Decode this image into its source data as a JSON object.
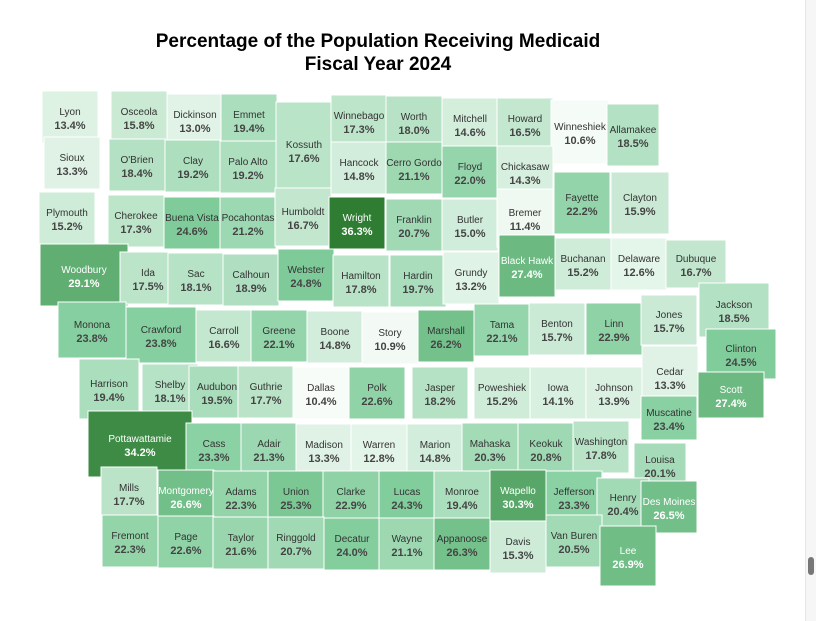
{
  "title_line1": "Percentage of the Population Receiving Medicaid",
  "title_line2": "Fiscal Year 2024",
  "color_scale": {
    "min": 10.4,
    "max": 36.3,
    "low": "#f7fcf8",
    "mid": "#7fcc9a",
    "high": "#2f7d32"
  },
  "counties": [
    {
      "name": "Lyon",
      "value": 13.4,
      "col": 0,
      "row": 0
    },
    {
      "name": "Osceola",
      "value": 15.8,
      "col": 1,
      "row": 0
    },
    {
      "name": "Dickinson",
      "value": 13.0,
      "col": 2,
      "row": 0
    },
    {
      "name": "Emmet",
      "value": 19.4,
      "col": 3,
      "row": 0
    },
    {
      "name": "Kossuth",
      "value": 17.6,
      "col": 4,
      "row": 0.5
    },
    {
      "name": "Winnebago",
      "value": 17.3,
      "col": 5,
      "row": 0
    },
    {
      "name": "Worth",
      "value": 18.0,
      "col": 6,
      "row": 0
    },
    {
      "name": "Mitchell",
      "value": 14.6,
      "col": 7,
      "row": 0
    },
    {
      "name": "Howard",
      "value": 16.5,
      "col": 8,
      "row": 0
    },
    {
      "name": "Winneshiek",
      "value": 10.6,
      "col": 9,
      "row": 0.3
    },
    {
      "name": "Allamakee",
      "value": 18.5,
      "col": 10,
      "row": 0.2
    },
    {
      "name": "Sioux",
      "value": 13.3,
      "col": 0,
      "row": 1
    },
    {
      "name": "O'Brien",
      "value": 18.4,
      "col": 1,
      "row": 1
    },
    {
      "name": "Clay",
      "value": 19.2,
      "col": 2,
      "row": 1
    },
    {
      "name": "Palo Alto",
      "value": 19.2,
      "col": 3,
      "row": 1
    },
    {
      "name": "Hancock",
      "value": 14.8,
      "col": 5,
      "row": 1
    },
    {
      "name": "Cerro Gordo",
      "value": 21.1,
      "col": 6,
      "row": 1
    },
    {
      "name": "Floyd",
      "value": 22.0,
      "col": 7,
      "row": 1
    },
    {
      "name": "Chickasaw",
      "value": 14.3,
      "col": 8,
      "row": 1
    },
    {
      "name": "Fayette",
      "value": 22.2,
      "col": 9,
      "row": 1.6
    },
    {
      "name": "Clayton",
      "value": 15.9,
      "col": 10,
      "row": 1.6
    },
    {
      "name": "Plymouth",
      "value": 15.2,
      "col": 0,
      "row": 2
    },
    {
      "name": "Cherokee",
      "value": 17.3,
      "col": 1,
      "row": 2
    },
    {
      "name": "Buena Vista",
      "value": 24.6,
      "col": 2,
      "row": 2
    },
    {
      "name": "Pocahontas",
      "value": 21.2,
      "col": 3,
      "row": 2
    },
    {
      "name": "Humboldt",
      "value": 16.7,
      "col": 4,
      "row": 1.9
    },
    {
      "name": "Wright",
      "value": 36.3,
      "col": 5,
      "row": 2
    },
    {
      "name": "Franklin",
      "value": 20.7,
      "col": 6,
      "row": 2
    },
    {
      "name": "Butler",
      "value": 15.0,
      "col": 7,
      "row": 2
    },
    {
      "name": "Bremer",
      "value": 11.4,
      "col": 8,
      "row": 2
    },
    {
      "name": "Woodbury",
      "value": 29.1,
      "col": 0,
      "row": 3
    },
    {
      "name": "Ida",
      "value": 17.5,
      "col": 1,
      "row": 3
    },
    {
      "name": "Sac",
      "value": 18.1,
      "col": 2,
      "row": 3
    },
    {
      "name": "Calhoun",
      "value": 18.9,
      "col": 3,
      "row": 3
    },
    {
      "name": "Webster",
      "value": 24.8,
      "col": 4,
      "row": 3
    },
    {
      "name": "Hamilton",
      "value": 17.8,
      "col": 5,
      "row": 3
    },
    {
      "name": "Hardin",
      "value": 19.7,
      "col": 6,
      "row": 3
    },
    {
      "name": "Grundy",
      "value": 13.2,
      "col": 7,
      "row": 3
    },
    {
      "name": "Black Hawk",
      "value": 27.4,
      "col": 8,
      "row": 2.9
    },
    {
      "name": "Buchanan",
      "value": 15.2,
      "col": 9,
      "row": 3
    },
    {
      "name": "Delaware",
      "value": 12.6,
      "col": 10,
      "row": 3
    },
    {
      "name": "Dubuque",
      "value": 16.7,
      "col": 11,
      "row": 3
    },
    {
      "name": "Monona",
      "value": 23.8,
      "col": 0,
      "row": 4
    },
    {
      "name": "Crawford",
      "value": 23.8,
      "col": 1,
      "row": 4
    },
    {
      "name": "Carroll",
      "value": 16.6,
      "col": 2,
      "row": 4
    },
    {
      "name": "Greene",
      "value": 22.1,
      "col": 3,
      "row": 4
    },
    {
      "name": "Boone",
      "value": 14.8,
      "col": 4,
      "row": 4
    },
    {
      "name": "Story",
      "value": 10.9,
      "col": 5,
      "row": 4
    },
    {
      "name": "Marshall",
      "value": 26.2,
      "col": 6,
      "row": 4
    },
    {
      "name": "Tama",
      "value": 22.1,
      "col": 7,
      "row": 4
    },
    {
      "name": "Benton",
      "value": 15.7,
      "col": 8,
      "row": 4
    },
    {
      "name": "Linn",
      "value": 22.9,
      "col": 9,
      "row": 4
    },
    {
      "name": "Jones",
      "value": 15.7,
      "col": 10,
      "row": 3.8
    },
    {
      "name": "Jackson",
      "value": 18.5,
      "col": 11,
      "row": 3.8
    },
    {
      "name": "Harrison",
      "value": 19.4,
      "col": 0,
      "row": 5
    },
    {
      "name": "Shelby",
      "value": 18.1,
      "col": 1,
      "row": 5
    },
    {
      "name": "Audubon",
      "value": 19.5,
      "col": 2,
      "row": 5
    },
    {
      "name": "Guthrie",
      "value": 17.7,
      "col": 3,
      "row": 5
    },
    {
      "name": "Dallas",
      "value": 10.4,
      "col": 4,
      "row": 5
    },
    {
      "name": "Polk",
      "value": 22.6,
      "col": 5,
      "row": 5
    },
    {
      "name": "Jasper",
      "value": 18.2,
      "col": 6,
      "row": 5
    },
    {
      "name": "Poweshiek",
      "value": 15.2,
      "col": 7,
      "row": 5
    },
    {
      "name": "Iowa",
      "value": 14.1,
      "col": 8,
      "row": 5
    },
    {
      "name": "Johnson",
      "value": 13.9,
      "col": 9,
      "row": 5
    },
    {
      "name": "Cedar",
      "value": 13.3,
      "col": 10,
      "row": 4.8
    },
    {
      "name": "Clinton",
      "value": 24.5,
      "col": 11,
      "row": 4.6
    },
    {
      "name": "Scott",
      "value": 27.4,
      "col": 11,
      "row": 5.4
    },
    {
      "name": "Pottawattamie",
      "value": 34.2,
      "col": 0,
      "row": 6
    },
    {
      "name": "Cass",
      "value": 23.3,
      "col": 1,
      "row": 6
    },
    {
      "name": "Adair",
      "value": 21.3,
      "col": 2,
      "row": 6
    },
    {
      "name": "Madison",
      "value": 13.3,
      "col": 3,
      "row": 6
    },
    {
      "name": "Warren",
      "value": 12.8,
      "col": 4,
      "row": 6
    },
    {
      "name": "Marion",
      "value": 14.8,
      "col": 5,
      "row": 6
    },
    {
      "name": "Mahaska",
      "value": 20.3,
      "col": 6,
      "row": 6
    },
    {
      "name": "Keokuk",
      "value": 20.8,
      "col": 7,
      "row": 6
    },
    {
      "name": "Washington",
      "value": 17.8,
      "col": 8,
      "row": 6
    },
    {
      "name": "Muscatine",
      "value": 23.4,
      "col": 9,
      "row": 5.7
    },
    {
      "name": "Louisa",
      "value": 20.1,
      "col": 9,
      "row": 6.5
    },
    {
      "name": "Mills",
      "value": 17.7,
      "col": 0,
      "row": 7
    },
    {
      "name": "Montgomery",
      "value": 26.6,
      "col": 1,
      "row": 7
    },
    {
      "name": "Adams",
      "value": 22.3,
      "col": 2,
      "row": 7
    },
    {
      "name": "Union",
      "value": 25.3,
      "col": 3,
      "row": 7
    },
    {
      "name": "Clarke",
      "value": 22.9,
      "col": 4,
      "row": 7
    },
    {
      "name": "Lucas",
      "value": 24.3,
      "col": 5,
      "row": 7
    },
    {
      "name": "Monroe",
      "value": 19.4,
      "col": 6,
      "row": 7
    },
    {
      "name": "Wapello",
      "value": 30.3,
      "col": 7,
      "row": 7
    },
    {
      "name": "Jefferson",
      "value": 23.3,
      "col": 8,
      "row": 7
    },
    {
      "name": "Henry",
      "value": 20.4,
      "col": 9,
      "row": 7
    },
    {
      "name": "Des Moines",
      "value": 26.5,
      "col": 10,
      "row": 7
    },
    {
      "name": "Fremont",
      "value": 22.3,
      "col": 0,
      "row": 8
    },
    {
      "name": "Page",
      "value": 22.6,
      "col": 1,
      "row": 8
    },
    {
      "name": "Taylor",
      "value": 21.6,
      "col": 2,
      "row": 8
    },
    {
      "name": "Ringgold",
      "value": 20.7,
      "col": 3,
      "row": 8
    },
    {
      "name": "Decatur",
      "value": 24.0,
      "col": 4,
      "row": 8
    },
    {
      "name": "Wayne",
      "value": 21.1,
      "col": 5,
      "row": 8
    },
    {
      "name": "Appanoose",
      "value": 26.3,
      "col": 6,
      "row": 8
    },
    {
      "name": "Davis",
      "value": 15.3,
      "col": 7,
      "row": 8
    },
    {
      "name": "Van Buren",
      "value": 20.5,
      "col": 8,
      "row": 8
    },
    {
      "name": "Lee",
      "value": 26.9,
      "col": 9,
      "row": 8
    }
  ]
}
